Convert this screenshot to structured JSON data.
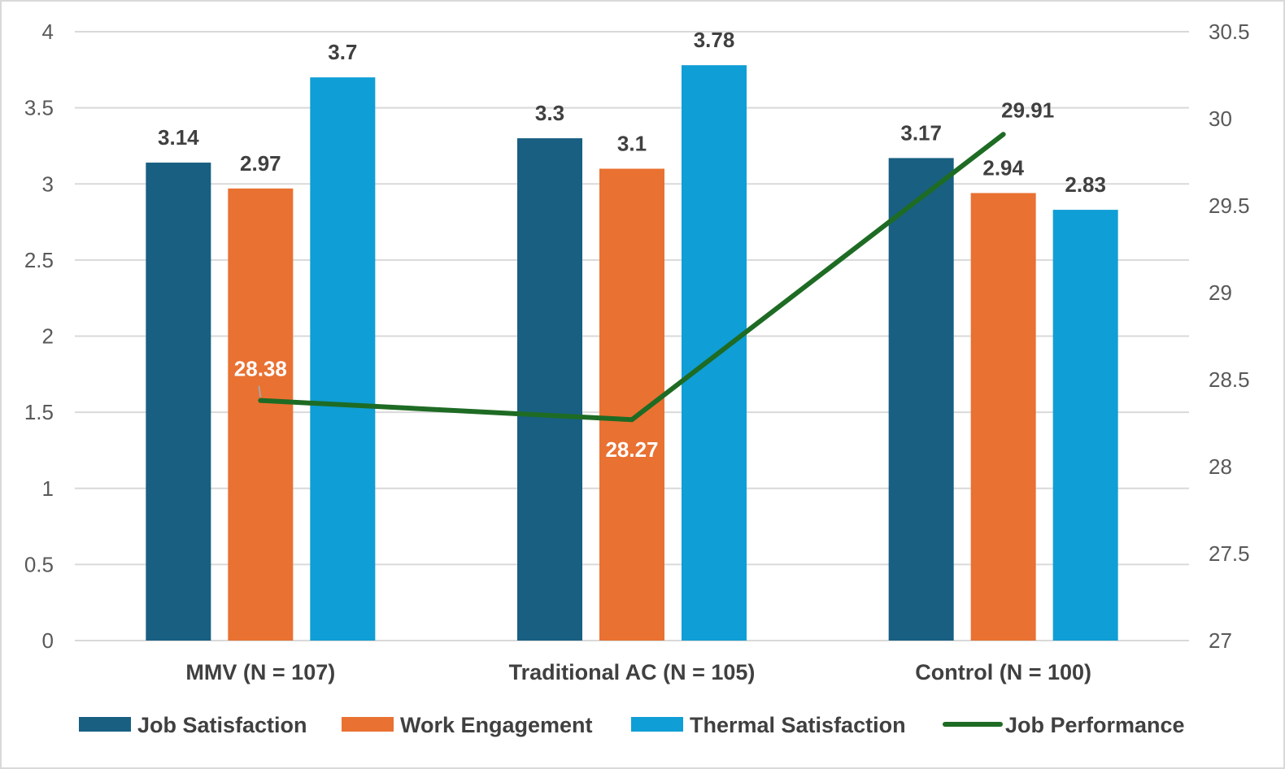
{
  "chart_data": {
    "type": "bar",
    "categories": [
      "MMV (N = 107)",
      "Traditional AC (N = 105)",
      "Control (N = 100)"
    ],
    "series": [
      {
        "name": "Job Satisfaction",
        "values": [
          3.14,
          3.3,
          3.17
        ],
        "color": "#185f82",
        "labels": [
          "3.14",
          "3.3",
          "3.17"
        ]
      },
      {
        "name": "Work Engagement",
        "values": [
          2.97,
          3.1,
          2.94
        ],
        "color": "#e97132",
        "labels": [
          "2.97",
          "3.1",
          "2.94"
        ]
      },
      {
        "name": "Thermal Satisfaction",
        "values": [
          3.7,
          3.78,
          2.83
        ],
        "color": "#0f9ed5",
        "labels": [
          "3.7",
          "3.78",
          "2.83"
        ]
      }
    ],
    "line_series": {
      "name": "Job Performance",
      "values": [
        28.38,
        28.27,
        29.91
      ],
      "color": "#1e6b24",
      "labels": [
        "28.38",
        "28.27",
        "29.91"
      ],
      "axis": "secondary"
    },
    "ylim": [
      0,
      4
    ],
    "y_ticks": [
      "0",
      "0.5",
      "1",
      "1.5",
      "2",
      "2.5",
      "3",
      "3.5",
      "4"
    ],
    "y2lim": [
      27,
      30.5
    ],
    "y2_ticks": [
      "27",
      "27.5",
      "28",
      "28.5",
      "29",
      "29.5",
      "30",
      "30.5"
    ],
    "grid": true,
    "legend_position": "bottom",
    "title": "",
    "xlabel": "",
    "ylabel": ""
  }
}
